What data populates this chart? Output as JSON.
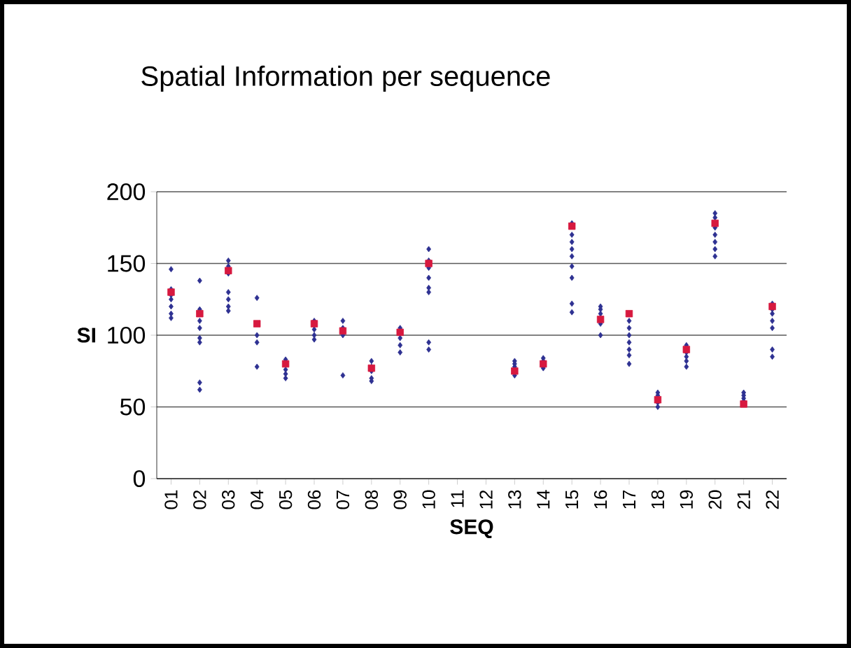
{
  "chart_data": {
    "type": "scatter",
    "title": "Spatial Information per sequence",
    "xlabel": "SEQ",
    "ylabel": "SI",
    "categories": [
      "01",
      "02",
      "03",
      "04",
      "05",
      "06",
      "07",
      "08",
      "09",
      "10",
      "11",
      "12",
      "13",
      "14",
      "15",
      "16",
      "17",
      "18",
      "19",
      "20",
      "21",
      "22"
    ],
    "ylim": [
      0,
      200
    ],
    "yticks": [
      0,
      50,
      100,
      150,
      200
    ],
    "grid": "y",
    "series": [
      {
        "color": "#2e3192",
        "marker": "diamond",
        "x": [
          "01",
          "01",
          "01",
          "01",
          "01",
          "01",
          "01",
          "02",
          "02",
          "02",
          "02",
          "02",
          "02",
          "02",
          "02",
          "03",
          "03",
          "03",
          "03",
          "03",
          "03",
          "03",
          "04",
          "04",
          "04",
          "04",
          "05",
          "05",
          "05",
          "05",
          "06",
          "06",
          "06",
          "06",
          "06",
          "07",
          "07",
          "07",
          "07",
          "08",
          "08",
          "08",
          "08",
          "08",
          "09",
          "09",
          "09",
          "09",
          "10",
          "10",
          "10",
          "10",
          "10",
          "10",
          "10",
          "10",
          "13",
          "13",
          "13",
          "13",
          "14",
          "14",
          "14",
          "14",
          "15",
          "15",
          "15",
          "15",
          "15",
          "15",
          "15",
          "15",
          "15",
          "16",
          "16",
          "16",
          "16",
          "16",
          "17",
          "17",
          "17",
          "17",
          "17",
          "17",
          "17",
          "18",
          "18",
          "18",
          "18",
          "19",
          "19",
          "19",
          "19",
          "19",
          "20",
          "20",
          "20",
          "20",
          "20",
          "20",
          "20",
          "21",
          "21",
          "21",
          "21",
          "22",
          "22",
          "22",
          "22",
          "22",
          "22",
          "22"
        ],
        "values": [
          146,
          132,
          128,
          125,
          120,
          115,
          112,
          138,
          118,
          110,
          105,
          98,
          95,
          67,
          62,
          152,
          148,
          143,
          130,
          125,
          120,
          117,
          126,
          100,
          95,
          78,
          83,
          76,
          73,
          70,
          110,
          107,
          104,
          100,
          97,
          110,
          105,
          100,
          72,
          82,
          78,
          75,
          70,
          68,
          105,
          98,
          93,
          88,
          160,
          152,
          147,
          140,
          133,
          130,
          95,
          90,
          82,
          80,
          78,
          72,
          84,
          82,
          78,
          77,
          178,
          170,
          165,
          160,
          155,
          148,
          140,
          122,
          116,
          120,
          118,
          115,
          108,
          100,
          110,
          105,
          100,
          95,
          90,
          86,
          80,
          60,
          58,
          53,
          50,
          93,
          88,
          85,
          82,
          78,
          185,
          182,
          175,
          170,
          165,
          160,
          155,
          60,
          58,
          56,
          54,
          122,
          118,
          115,
          110,
          105,
          90,
          85
        ]
      },
      {
        "color": "#d7193f",
        "marker": "square",
        "x": [
          "01",
          "02",
          "03",
          "04",
          "05",
          "06",
          "07",
          "08",
          "09",
          "10",
          "13",
          "14",
          "15",
          "16",
          "17",
          "18",
          "19",
          "20",
          "21",
          "22"
        ],
        "values": [
          130,
          115,
          145,
          108,
          80,
          108,
          103,
          77,
          102,
          150,
          75,
          80,
          176,
          111,
          115,
          55,
          90,
          178,
          52,
          120
        ]
      }
    ]
  }
}
